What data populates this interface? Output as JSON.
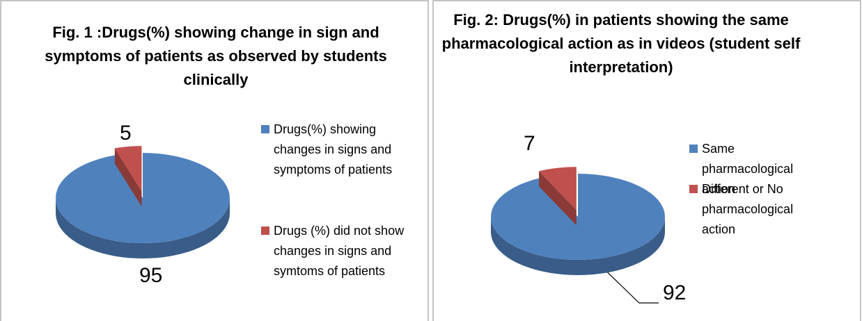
{
  "chart_data": [
    {
      "type": "pie",
      "title": "Fig. 1 :Drugs(%) showing change in sign and symptoms of patients as observed by students  clinically",
      "categories": [
        "Drugs(%) showing changes in signs and symptoms of patients",
        "Drugs (%) did  not show changes  in signs and symtoms of patients"
      ],
      "values": [
        95,
        5
      ],
      "colors": [
        "#4f81bd",
        "#c0504d"
      ],
      "legend": "right"
    },
    {
      "type": "pie",
      "title": "Fig. 2: Drugs(%) in patients showing the same pharmacological action as in videos (student self interpretation)",
      "categories": [
        "Same pharmacological action",
        "Different or No pharmacological action"
      ],
      "values": [
        92,
        7
      ],
      "colors": [
        "#4f81bd",
        "#c0504d"
      ],
      "legend": "right"
    }
  ]
}
